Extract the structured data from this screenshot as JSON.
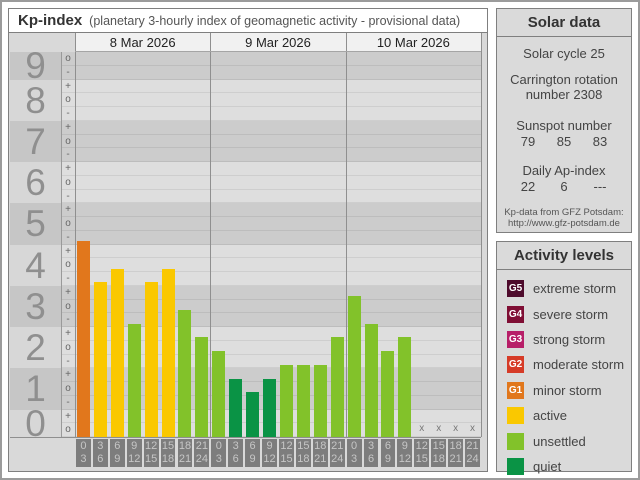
{
  "window": {
    "title": "Kp-index",
    "subtitle": "(planetary 3-hourly index of geomagnetic activity - provisional data)"
  },
  "chart_data": {
    "type": "bar",
    "title": "Kp-index",
    "subtitle": "planetary 3-hourly index of geomagnetic activity - provisional data",
    "ylabel": "Kp",
    "y_axis": {
      "kp_range": [
        0,
        9
      ],
      "total_thirds": 28,
      "bands": [
        {
          "kp": "9",
          "ticks": [
            "o",
            "-"
          ]
        },
        {
          "kp": "8",
          "ticks": [
            "+",
            "o",
            "-"
          ]
        },
        {
          "kp": "7",
          "ticks": [
            "+",
            "o",
            "-"
          ]
        },
        {
          "kp": "6",
          "ticks": [
            "+",
            "o",
            "-"
          ]
        },
        {
          "kp": "5",
          "ticks": [
            "+",
            "o",
            "-"
          ]
        },
        {
          "kp": "4",
          "ticks": [
            "+",
            "o",
            "-"
          ]
        },
        {
          "kp": "3",
          "ticks": [
            "+",
            "o",
            "-"
          ]
        },
        {
          "kp": "2",
          "ticks": [
            "+",
            "o",
            "-"
          ]
        },
        {
          "kp": "1",
          "ticks": [
            "+",
            "o",
            "-"
          ]
        },
        {
          "kp": "0",
          "ticks": [
            "+",
            "o"
          ]
        }
      ]
    },
    "slot_labels": [
      [
        "0",
        "3"
      ],
      [
        "3",
        "6"
      ],
      [
        "6",
        "9"
      ],
      [
        "9",
        "12"
      ],
      [
        "12",
        "15"
      ],
      [
        "15",
        "18"
      ],
      [
        "18",
        "21"
      ],
      [
        "21",
        "24"
      ]
    ],
    "no_data_marker": "x",
    "level_colors": {
      "minor storm": "#e1771c",
      "active": "#fac800",
      "unsettled": "#82c22a",
      "quiet": "#0a9345"
    },
    "days": [
      {
        "date": "8 Mar 2026",
        "values": [
          {
            "hours": "0-3",
            "kp": "5-",
            "thirds": 14,
            "level": "minor storm"
          },
          {
            "hours": "3-6",
            "kp": "4-",
            "thirds": 11,
            "level": "active"
          },
          {
            "hours": "6-9",
            "kp": "4o",
            "thirds": 12,
            "level": "active"
          },
          {
            "hours": "9-12",
            "kp": "3-",
            "thirds": 8,
            "level": "unsettled"
          },
          {
            "hours": "12-15",
            "kp": "4-",
            "thirds": 11,
            "level": "active"
          },
          {
            "hours": "15-18",
            "kp": "4o",
            "thirds": 12,
            "level": "active"
          },
          {
            "hours": "18-21",
            "kp": "3o",
            "thirds": 9,
            "level": "unsettled"
          },
          {
            "hours": "21-24",
            "kp": "2+",
            "thirds": 7,
            "level": "unsettled"
          }
        ]
      },
      {
        "date": "9 Mar 2026",
        "values": [
          {
            "hours": "0-3",
            "kp": "2o",
            "thirds": 6,
            "level": "unsettled"
          },
          {
            "hours": "3-6",
            "kp": "1+",
            "thirds": 4,
            "level": "quiet"
          },
          {
            "hours": "6-9",
            "kp": "1o",
            "thirds": 3,
            "level": "quiet"
          },
          {
            "hours": "9-12",
            "kp": "1+",
            "thirds": 4,
            "level": "quiet"
          },
          {
            "hours": "12-15",
            "kp": "2-",
            "thirds": 5,
            "level": "unsettled"
          },
          {
            "hours": "15-18",
            "kp": "2-",
            "thirds": 5,
            "level": "unsettled"
          },
          {
            "hours": "18-21",
            "kp": "2-",
            "thirds": 5,
            "level": "unsettled"
          },
          {
            "hours": "21-24",
            "kp": "2+",
            "thirds": 7,
            "level": "unsettled"
          }
        ]
      },
      {
        "date": "10 Mar 2026",
        "values": [
          {
            "hours": "0-3",
            "kp": "3+",
            "thirds": 10,
            "level": "unsettled"
          },
          {
            "hours": "3-6",
            "kp": "3-",
            "thirds": 8,
            "level": "unsettled"
          },
          {
            "hours": "6-9",
            "kp": "2o",
            "thirds": 6,
            "level": "unsettled"
          },
          {
            "hours": "9-12",
            "kp": "2+",
            "thirds": 7,
            "level": "unsettled"
          },
          {
            "hours": "12-15",
            "kp": null
          },
          {
            "hours": "15-18",
            "kp": null
          },
          {
            "hours": "18-21",
            "kp": null
          },
          {
            "hours": "21-24",
            "kp": null
          }
        ]
      }
    ]
  },
  "solar_panel": {
    "title": "Solar data",
    "cycle_line": "Solar cycle 25",
    "carrington_line1": "Carrington rotation",
    "carrington_line2": "number 2308",
    "sunspot_label": "Sunspot number",
    "sunspot_values": [
      "79",
      "85",
      "83"
    ],
    "ap_label": "Daily Ap-index",
    "ap_values": [
      "22",
      "6",
      "---"
    ],
    "source_line1": "Kp-data from GFZ Potsdam:",
    "source_line2": "http://www.gfz-potsdam.de"
  },
  "legend_panel": {
    "title": "Activity levels",
    "items": [
      {
        "code": "G5",
        "label": "extreme storm",
        "color": "#4e0b2c"
      },
      {
        "code": "G4",
        "label": "severe storm",
        "color": "#7f0e34"
      },
      {
        "code": "G3",
        "label": "strong storm",
        "color": "#b71e68"
      },
      {
        "code": "G2",
        "label": "moderate storm",
        "color": "#d63b27"
      },
      {
        "code": "G1",
        "label": "minor storm",
        "color": "#e1771c"
      },
      {
        "code": null,
        "label": "active",
        "color": "#fac800"
      },
      {
        "code": null,
        "label": "unsettled",
        "color": "#82c22a"
      },
      {
        "code": null,
        "label": "quiet",
        "color": "#0a9345"
      }
    ]
  }
}
